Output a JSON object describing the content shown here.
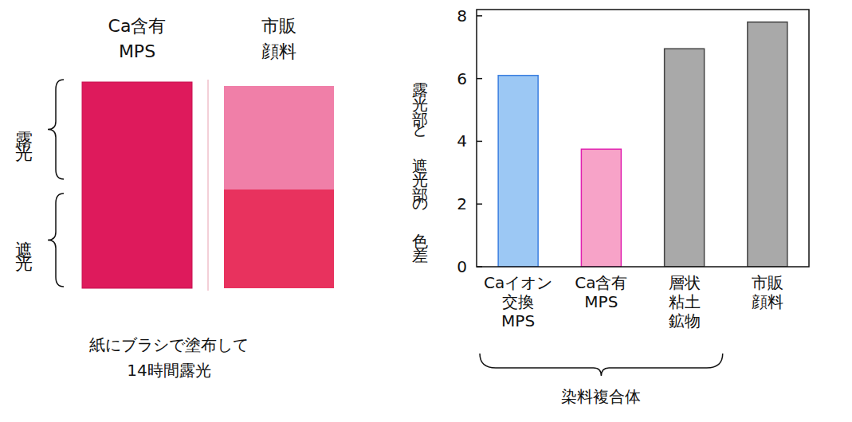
{
  "chart_data": {
    "type": "bar",
    "y_label": "露光部と遮光部の色差",
    "categories": [
      "Caイオン\n交換\nMPS",
      "Ca含有\nMPS",
      "層状\n粘土\n鉱物",
      "市販\n顔料"
    ],
    "values": [
      6.1,
      3.75,
      6.95,
      7.8
    ],
    "colors": [
      "#9cc8f4",
      "#f7a3c8",
      "#a9a9a9",
      "#a9a9a9"
    ],
    "ylim": [
      0,
      8.2
    ],
    "yticks": [
      0,
      2,
      4,
      6,
      8
    ],
    "grid": false,
    "annotations": [
      "染料複合体"
    ]
  },
  "photo": {
    "samples": [
      "Ca含有\nMPS",
      "市販\n顔料"
    ],
    "regions": [
      "露光",
      "遮光"
    ],
    "caption": "紙にブラシで塗布して\n14時間露光"
  }
}
